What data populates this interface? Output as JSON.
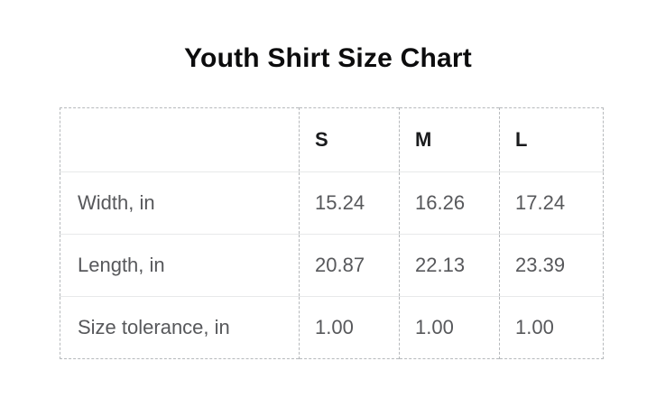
{
  "page": {
    "title": "Youth Shirt Size Chart"
  },
  "colors": {
    "background": "#ffffff",
    "title_text": "#0c0c0d",
    "header_text": "#1a1b1d",
    "body_text": "#57585b",
    "dashed_border": "#b6b9bc",
    "row_separator": "#e8e9ea"
  },
  "chart_data": {
    "type": "table",
    "title": "Youth Shirt Size Chart",
    "columns": [
      "",
      "S",
      "M",
      "L"
    ],
    "rows": [
      {
        "label": "Width, in",
        "values": [
          "15.24",
          "16.26",
          "17.24"
        ]
      },
      {
        "label": "Length, in",
        "values": [
          "20.87",
          "22.13",
          "23.39"
        ]
      },
      {
        "label": "Size tolerance, in",
        "values": [
          "1.00",
          "1.00",
          "1.00"
        ]
      }
    ]
  }
}
